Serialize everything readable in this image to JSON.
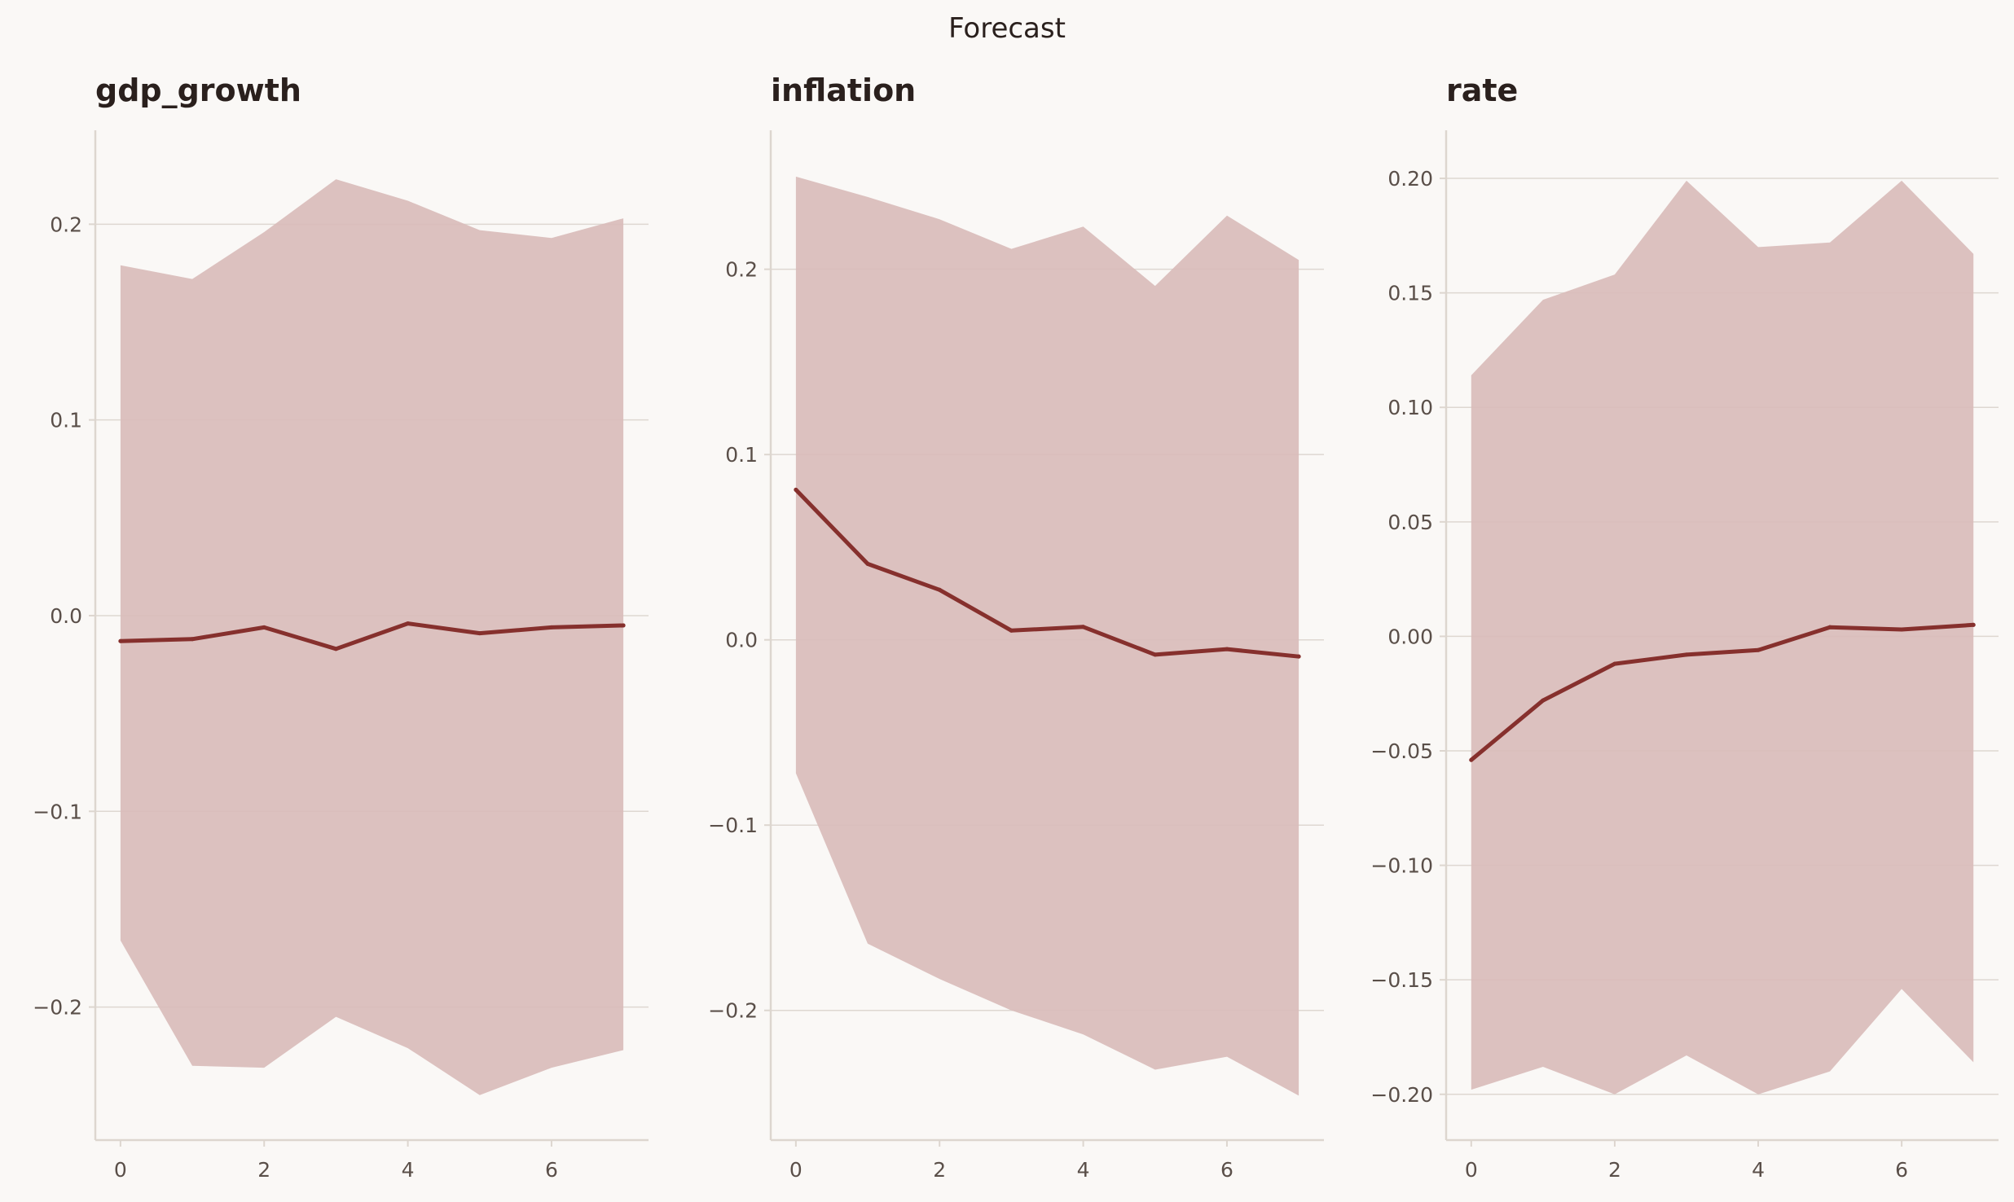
{
  "suptitle": "Forecast",
  "colors": {
    "line": "#86302d",
    "band": "#d9bcba",
    "grid": "#ded7d1",
    "axis": "#ddd6cf",
    "tick_text": "#5a4f49",
    "background": "#faf8f6"
  },
  "chart_data": [
    {
      "type": "area",
      "title": "gdp_growth",
      "x": [
        0,
        1,
        2,
        3,
        4,
        5,
        6,
        7
      ],
      "xticks": [
        0,
        2,
        4,
        6
      ],
      "xtick_labels": [
        "0",
        "2",
        "4",
        "6"
      ],
      "xlim": [
        -0.35,
        7.35
      ],
      "ylim": [
        -0.268,
        0.248
      ],
      "yticks": [
        -0.2,
        -0.1,
        0.0,
        0.1,
        0.2
      ],
      "ytick_labels": [
        "−0.2",
        "−0.1",
        "0.0",
        "0.1",
        "0.2"
      ],
      "grid": true,
      "series": [
        {
          "kind": "line",
          "values": [
            -0.013,
            -0.012,
            -0.006,
            -0.017,
            -0.004,
            -0.009,
            -0.006,
            -0.005
          ]
        },
        {
          "kind": "band",
          "lower": [
            -0.166,
            -0.23,
            -0.231,
            -0.205,
            -0.221,
            -0.245,
            -0.231,
            -0.222
          ],
          "upper": [
            0.179,
            0.172,
            0.196,
            0.223,
            0.212,
            0.197,
            0.193,
            0.203
          ]
        }
      ]
    },
    {
      "type": "area",
      "title": "inflation",
      "x": [
        0,
        1,
        2,
        3,
        4,
        5,
        6,
        7
      ],
      "xticks": [
        0,
        2,
        4,
        6
      ],
      "xtick_labels": [
        "0",
        "2",
        "4",
        "6"
      ],
      "xlim": [
        -0.35,
        7.35
      ],
      "ylim": [
        -0.27,
        0.275
      ],
      "yticks": [
        -0.2,
        -0.1,
        0.0,
        0.1,
        0.2
      ],
      "ytick_labels": [
        "−0.2",
        "−0.1",
        "0.0",
        "0.1",
        "0.2"
      ],
      "grid": true,
      "series": [
        {
          "kind": "line",
          "values": [
            0.081,
            0.041,
            0.027,
            0.005,
            0.007,
            -0.008,
            -0.005,
            -0.009
          ]
        },
        {
          "kind": "band",
          "lower": [
            -0.072,
            -0.164,
            -0.183,
            -0.2,
            -0.213,
            -0.232,
            -0.225,
            -0.246
          ],
          "upper": [
            0.25,
            0.239,
            0.227,
            0.211,
            0.223,
            0.191,
            0.229,
            0.205
          ]
        }
      ]
    },
    {
      "type": "area",
      "title": "rate",
      "x": [
        0,
        1,
        2,
        3,
        4,
        5,
        6,
        7
      ],
      "xticks": [
        0,
        2,
        4,
        6
      ],
      "xtick_labels": [
        "0",
        "2",
        "4",
        "6"
      ],
      "xlim": [
        -0.35,
        7.35
      ],
      "ylim": [
        -0.22,
        0.221
      ],
      "yticks": [
        -0.2,
        -0.15,
        -0.1,
        -0.05,
        0.0,
        0.05,
        0.1,
        0.15,
        0.2
      ],
      "ytick_labels": [
        "−0.20",
        "−0.15",
        "−0.10",
        "−0.05",
        "0.00",
        "0.05",
        "0.10",
        "0.15",
        "0.20"
      ],
      "grid": true,
      "series": [
        {
          "kind": "line",
          "values": [
            -0.054,
            -0.028,
            -0.012,
            -0.008,
            -0.006,
            0.004,
            0.003,
            0.005
          ]
        },
        {
          "kind": "band",
          "lower": [
            -0.198,
            -0.188,
            -0.2,
            -0.183,
            -0.2,
            -0.19,
            -0.154,
            -0.186
          ],
          "upper": [
            0.114,
            0.147,
            0.158,
            0.199,
            0.17,
            0.172,
            0.199,
            0.167
          ]
        }
      ]
    }
  ]
}
